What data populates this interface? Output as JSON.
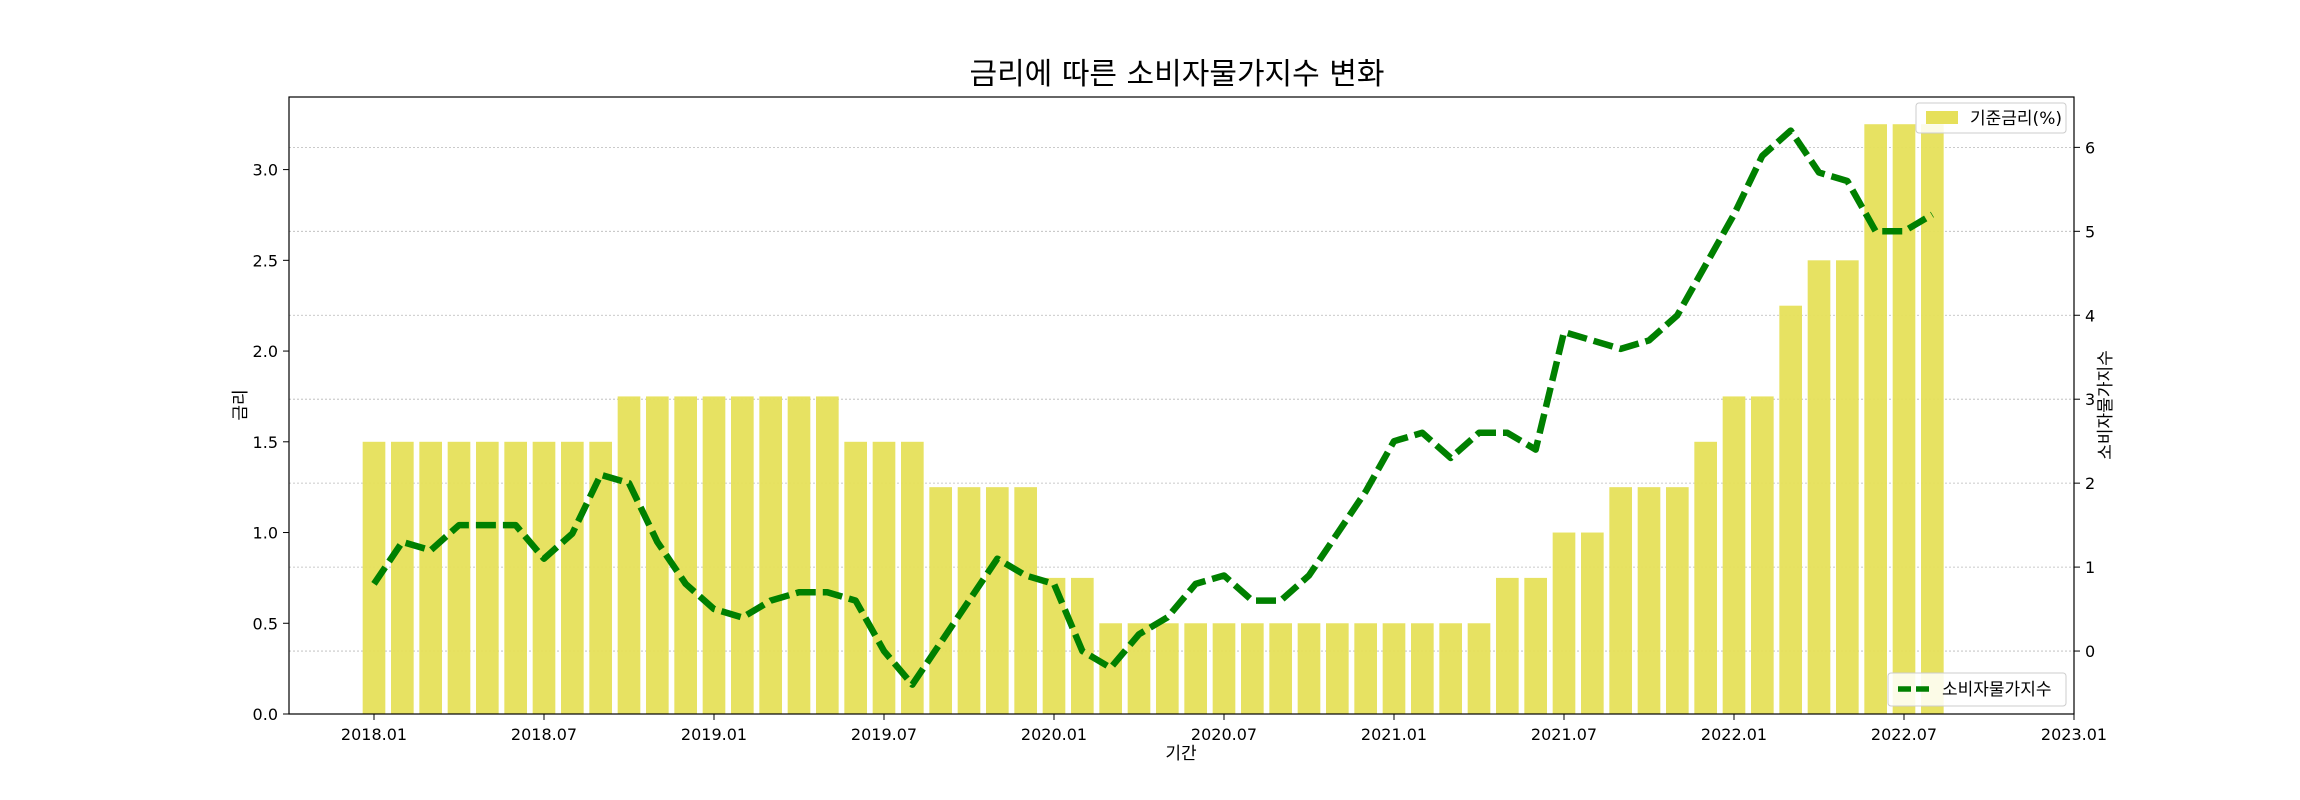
{
  "chart_data": {
    "type": "bar",
    "title": "금리에 따른 소비자물가지수 변화",
    "xlabel": "기간",
    "ylabel": "금리",
    "y2label": "소비자물가지수",
    "x_ticks": [
      "2018.01",
      "2018.07",
      "2019.01",
      "2019.07",
      "2020.01",
      "2020.07",
      "2021.01",
      "2021.07",
      "2022.01",
      "2022.07",
      "2023.01"
    ],
    "y_ticks": [
      "0.0",
      "0.5",
      "1.0",
      "1.5",
      "2.0",
      "2.5",
      "3.0"
    ],
    "y2_ticks": [
      "0",
      "1",
      "2",
      "3",
      "4",
      "5",
      "6"
    ],
    "ylim": [
      0,
      3.4
    ],
    "y2lim": [
      -0.75,
      6.6
    ],
    "grid": true,
    "x_start": "2017.10",
    "x_end": "2023.01",
    "categories": [
      "2018.01",
      "2018.02",
      "2018.03",
      "2018.04",
      "2018.05",
      "2018.06",
      "2018.07",
      "2018.08",
      "2018.09",
      "2018.10",
      "2018.11",
      "2018.12",
      "2019.01",
      "2019.02",
      "2019.03",
      "2019.04",
      "2019.05",
      "2019.06",
      "2019.07",
      "2019.08",
      "2019.09",
      "2019.10",
      "2019.11",
      "2019.12",
      "2020.01",
      "2020.02",
      "2020.03",
      "2020.04",
      "2020.05",
      "2020.06",
      "2020.07",
      "2020.08",
      "2020.09",
      "2020.10",
      "2020.11",
      "2020.12",
      "2021.01",
      "2021.02",
      "2021.03",
      "2021.04",
      "2021.05",
      "2021.06",
      "2021.07",
      "2021.08",
      "2021.09",
      "2021.10",
      "2021.11",
      "2021.12",
      "2022.01",
      "2022.02",
      "2022.03",
      "2022.04",
      "2022.05",
      "2022.06",
      "2022.07",
      "2022.08"
    ],
    "series": [
      {
        "name": "기준금리(%)",
        "type": "bar",
        "axis": "left",
        "color": "#e6e05a",
        "values": [
          1.5,
          1.5,
          1.5,
          1.5,
          1.5,
          1.5,
          1.5,
          1.5,
          1.5,
          1.75,
          1.75,
          1.75,
          1.75,
          1.75,
          1.75,
          1.75,
          1.75,
          1.5,
          1.5,
          1.5,
          1.25,
          1.25,
          1.25,
          1.25,
          0.75,
          0.75,
          0.5,
          0.5,
          0.5,
          0.5,
          0.5,
          0.5,
          0.5,
          0.5,
          0.5,
          0.5,
          0.5,
          0.5,
          0.5,
          0.5,
          0.75,
          0.75,
          1.0,
          1.0,
          1.25,
          1.25,
          1.25,
          1.5,
          1.75,
          1.75,
          2.25,
          2.5,
          2.5,
          3.25,
          3.25,
          3.25
        ]
      },
      {
        "name": "소비자물가지수",
        "type": "line",
        "axis": "right",
        "color": "#008000",
        "values": [
          0.8,
          1.3,
          1.2,
          1.5,
          1.5,
          1.5,
          1.1,
          1.4,
          2.1,
          2.0,
          1.3,
          0.8,
          0.5,
          0.4,
          0.6,
          0.7,
          0.7,
          0.6,
          0.0,
          -0.4,
          0.1,
          0.6,
          1.1,
          0.9,
          0.8,
          0.0,
          -0.2,
          0.2,
          0.4,
          0.8,
          0.9,
          0.6,
          0.6,
          0.9,
          1.4,
          1.9,
          2.5,
          2.6,
          2.3,
          2.6,
          2.6,
          2.4,
          3.8,
          3.7,
          3.6,
          3.7,
          4.0,
          4.6,
          5.2,
          5.9,
          6.2,
          5.7,
          5.6,
          5.0,
          5.0,
          5.2
        ]
      }
    ],
    "legend": [
      {
        "label": "기준금리(%)",
        "placement": "top-right"
      },
      {
        "label": "소비자물가지수",
        "placement": "bottom-right"
      }
    ]
  }
}
